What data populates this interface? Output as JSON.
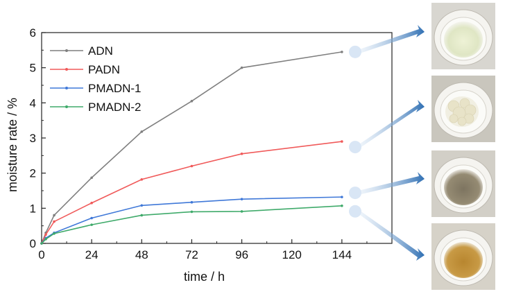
{
  "chart_data": {
    "type": "line",
    "xlabel": "time / h",
    "ylabel": "moisture rate / %",
    "xlim": [
      0,
      168
    ],
    "ylim": [
      0,
      6
    ],
    "xticks": [
      "0",
      "24",
      "48",
      "72",
      "96",
      "120",
      "144"
    ],
    "yticks": [
      "0",
      "1",
      "2",
      "3",
      "4",
      "5",
      "6"
    ],
    "legend_position": "top-left",
    "grid": false,
    "series": [
      {
        "name": "ADN",
        "color": "#7f7f7f",
        "x": [
          0,
          2,
          6,
          24,
          48,
          72,
          96,
          144
        ],
        "y": [
          0,
          0.3,
          0.8,
          1.87,
          3.18,
          4.05,
          5.0,
          5.45
        ]
      },
      {
        "name": "PADN",
        "color": "#f05a5a",
        "x": [
          0,
          2,
          6,
          24,
          48,
          72,
          96,
          144
        ],
        "y": [
          0,
          0.25,
          0.62,
          1.15,
          1.82,
          2.2,
          2.55,
          2.9
        ]
      },
      {
        "name": "PMADN-1",
        "color": "#3f78d8",
        "x": [
          0,
          2,
          6,
          24,
          48,
          72,
          96,
          144
        ],
        "y": [
          0,
          0.15,
          0.3,
          0.72,
          1.08,
          1.17,
          1.26,
          1.32
        ]
      },
      {
        "name": "PMADN-2",
        "color": "#3faa6a",
        "x": [
          0,
          2,
          6,
          24,
          48,
          72,
          96,
          144
        ],
        "y": [
          0,
          0.12,
          0.28,
          0.53,
          0.8,
          0.9,
          0.91,
          1.07
        ]
      }
    ],
    "photos": [
      {
        "series": "ADN",
        "sample": "clear-liquid"
      },
      {
        "series": "PADN",
        "sample": "white-lumps"
      },
      {
        "series": "PMADN-1",
        "sample": "grey-powder"
      },
      {
        "series": "PMADN-2",
        "sample": "brown-powder"
      }
    ]
  }
}
